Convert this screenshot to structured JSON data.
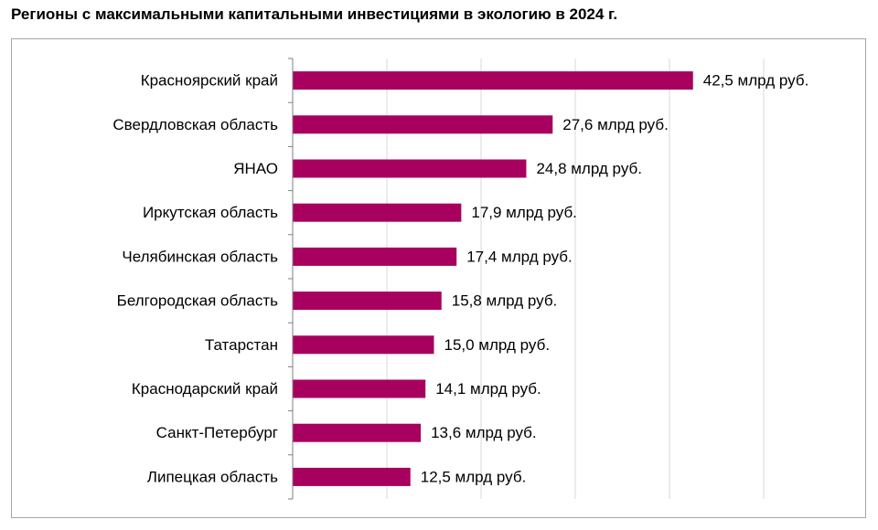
{
  "title": "Регионы с максимальными капитальными инвестициями в экологию в 2024 г.",
  "colors": {
    "bar": "#a8005e",
    "grid": "#d9d9d9",
    "axis": "#7f7f7f",
    "frame": "#a6a6a6"
  },
  "chart_data": {
    "type": "bar",
    "orientation": "horizontal",
    "title": "Регионы с максимальными капитальными инвестициями в экологию в 2024 г.",
    "xlabel": "",
    "ylabel": "",
    "xlim": [
      0,
      50
    ],
    "grid": true,
    "legend": "none",
    "value_suffix": " млрд руб.",
    "categories": [
      "Красноярский край",
      "Свердловская область",
      "ЯНАО",
      "Иркутская область",
      "Челябинская область",
      "Белгородская область",
      "Татарстан",
      "Краснодарский край",
      "Санкт-Петербург",
      "Липецкая область"
    ],
    "values": [
      42.5,
      27.6,
      24.8,
      17.9,
      17.4,
      15.8,
      15.0,
      14.1,
      13.6,
      12.5
    ],
    "labels": [
      "42,5 млрд руб.",
      "27,6 млрд руб.",
      "24,8 млрд руб.",
      "17,9 млрд руб.",
      "17,4 млрд руб.",
      "15,8 млрд руб.",
      "15,0 млрд руб.",
      "14,1 млрд руб.",
      "13,6 млрд руб.",
      "12,5 млрд руб."
    ]
  }
}
